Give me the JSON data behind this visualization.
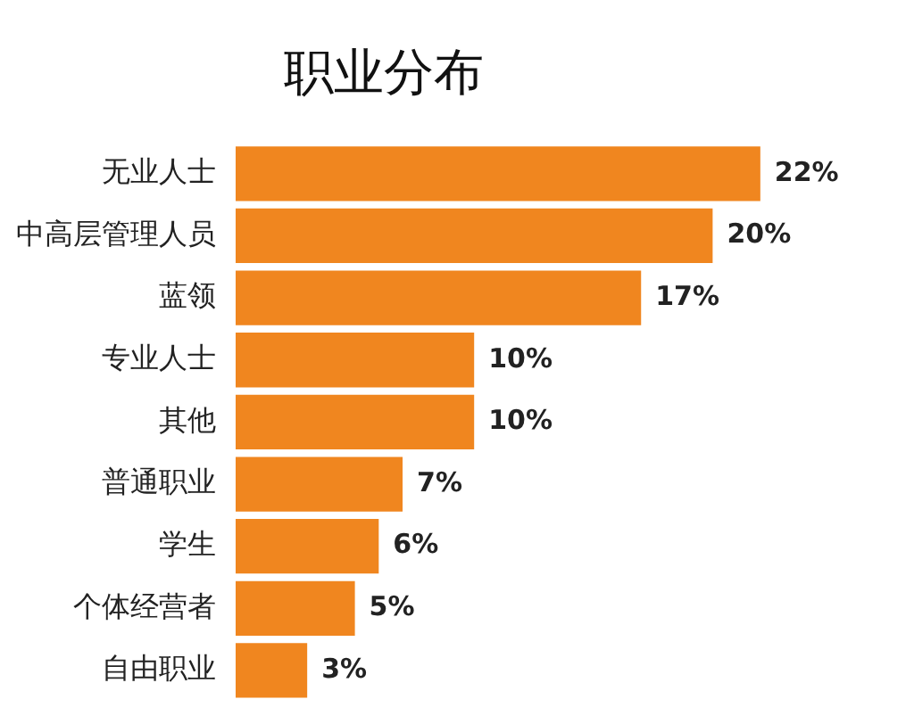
{
  "chart_data": {
    "type": "bar",
    "orientation": "horizontal",
    "title": "职业分布",
    "categories": [
      "无业人士",
      "中高层管理人员",
      "蓝领",
      "专业人士",
      "其他",
      "普通职业",
      "学生",
      "个体经营者",
      "自由职业"
    ],
    "values": [
      22,
      20,
      17,
      10,
      10,
      7,
      6,
      5,
      3
    ],
    "value_labels": [
      "22%",
      "20%",
      "17%",
      "10%",
      "10%",
      "7%",
      "6%",
      "5%",
      "3%"
    ],
    "color": "#f0861f"
  }
}
